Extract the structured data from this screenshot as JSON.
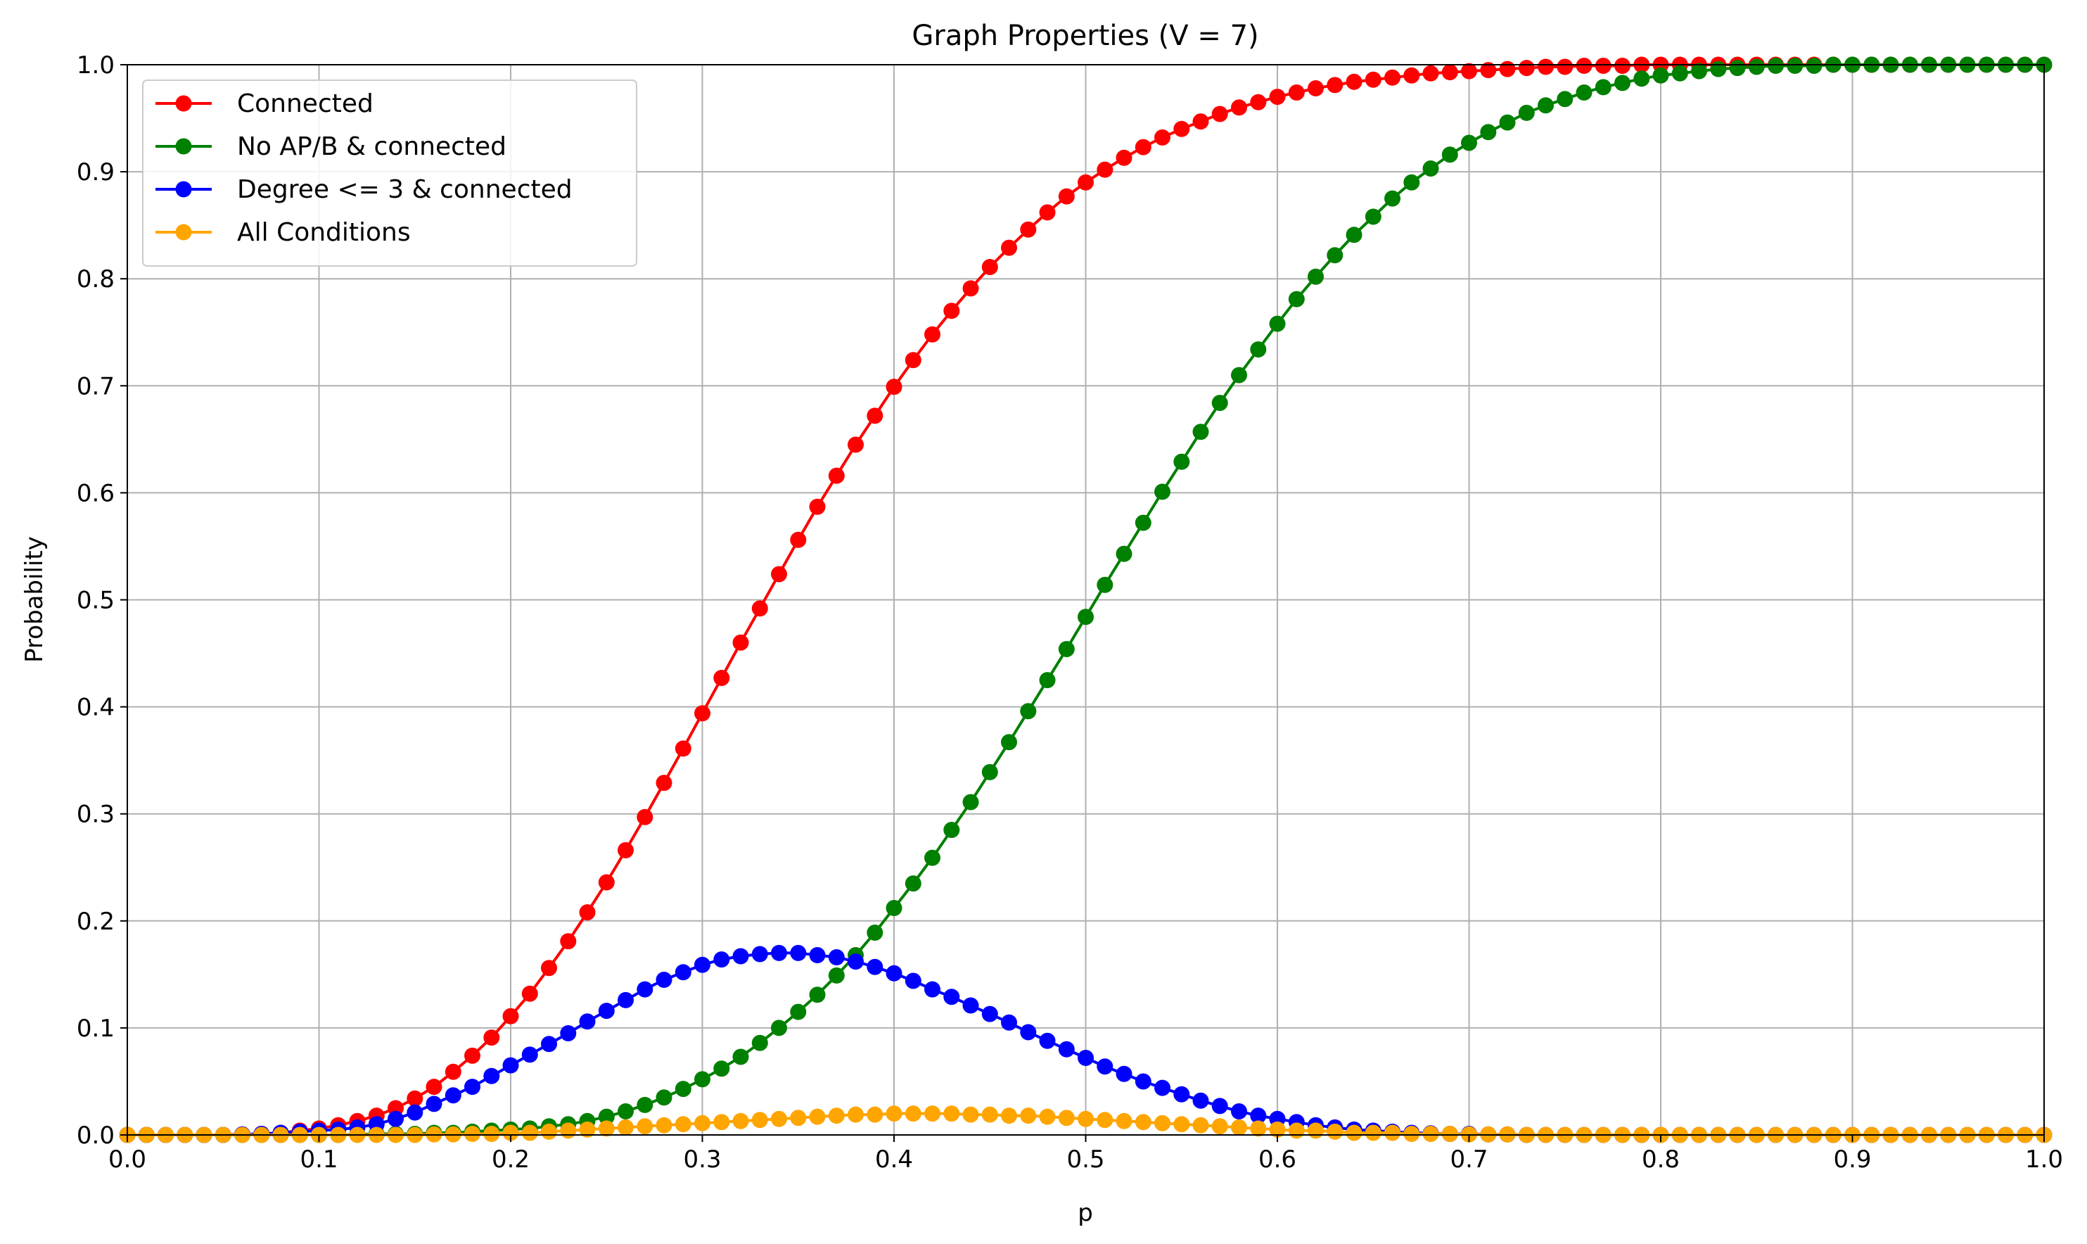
{
  "chart_data": {
    "type": "line",
    "title": "Graph Properties (V = 7)",
    "xlabel": "p",
    "ylabel": "Probability",
    "xlim": [
      0.0,
      1.0
    ],
    "ylim": [
      0.0,
      1.0
    ],
    "xticks": [
      "0.0",
      "0.1",
      "0.2",
      "0.3",
      "0.4",
      "0.5",
      "0.6",
      "0.7",
      "0.8",
      "0.9",
      "1.0"
    ],
    "yticks": [
      "0.0",
      "0.1",
      "0.2",
      "0.3",
      "0.4",
      "0.5",
      "0.6",
      "0.7",
      "0.8",
      "0.9",
      "1.0"
    ],
    "grid": true,
    "legend_position": "top-left",
    "marker": "circle",
    "series": [
      {
        "name": "Connected",
        "color": "#ff0000",
        "x": [
          0.0,
          0.01,
          0.02,
          0.03,
          0.04,
          0.05,
          0.06,
          0.07,
          0.08,
          0.09,
          0.1,
          0.11,
          0.12,
          0.13,
          0.14,
          0.15,
          0.16,
          0.17,
          0.18,
          0.19,
          0.2,
          0.21,
          0.22,
          0.23,
          0.24,
          0.25,
          0.26,
          0.27,
          0.28,
          0.29,
          0.3,
          0.31,
          0.32,
          0.33,
          0.34,
          0.35,
          0.36,
          0.37,
          0.38,
          0.39,
          0.4,
          0.41,
          0.42,
          0.43,
          0.44,
          0.45,
          0.46,
          0.47,
          0.48,
          0.49,
          0.5,
          0.51,
          0.52,
          0.53,
          0.54,
          0.55,
          0.56,
          0.57,
          0.58,
          0.59,
          0.6,
          0.61,
          0.62,
          0.63,
          0.64,
          0.65,
          0.66,
          0.67,
          0.68,
          0.69,
          0.7,
          0.71,
          0.72,
          0.73,
          0.74,
          0.75,
          0.76,
          0.77,
          0.78,
          0.79,
          0.8,
          0.81,
          0.82,
          0.83,
          0.84,
          0.85,
          0.86,
          0.87,
          0.88,
          0.89,
          0.9,
          0.91,
          0.92,
          0.93,
          0.94,
          0.95,
          0.96,
          0.97,
          0.98,
          0.99,
          1.0
        ],
        "y": [
          0.0,
          0.0,
          0.0,
          0.0,
          0.0,
          0.0,
          0.0005,
          0.001,
          0.002,
          0.004,
          0.006,
          0.009,
          0.013,
          0.018,
          0.025,
          0.034,
          0.045,
          0.059,
          0.074,
          0.091,
          0.111,
          0.132,
          0.156,
          0.181,
          0.208,
          0.236,
          0.266,
          0.297,
          0.329,
          0.361,
          0.394,
          0.427,
          0.46,
          0.492,
          0.524,
          0.556,
          0.587,
          0.616,
          0.645,
          0.672,
          0.699,
          0.724,
          0.748,
          0.77,
          0.791,
          0.811,
          0.829,
          0.846,
          0.862,
          0.877,
          0.89,
          0.902,
          0.913,
          0.923,
          0.932,
          0.94,
          0.947,
          0.954,
          0.96,
          0.965,
          0.97,
          0.974,
          0.978,
          0.981,
          0.984,
          0.986,
          0.988,
          0.99,
          0.992,
          0.993,
          0.994,
          0.995,
          0.996,
          0.997,
          0.998,
          0.998,
          0.999,
          0.999,
          0.999,
          1.0,
          1.0,
          1.0,
          1.0,
          1.0,
          1.0,
          1.0,
          1.0,
          1.0,
          1.0,
          1.0,
          1.0,
          1.0,
          1.0,
          1.0,
          1.0,
          1.0,
          1.0,
          1.0,
          1.0,
          1.0,
          1.0
        ]
      },
      {
        "name": "No AP/B & connected",
        "color": "#008000",
        "x": [
          0.0,
          0.01,
          0.02,
          0.03,
          0.04,
          0.05,
          0.06,
          0.07,
          0.08,
          0.09,
          0.1,
          0.11,
          0.12,
          0.13,
          0.14,
          0.15,
          0.16,
          0.17,
          0.18,
          0.19,
          0.2,
          0.21,
          0.22,
          0.23,
          0.24,
          0.25,
          0.26,
          0.27,
          0.28,
          0.29,
          0.3,
          0.31,
          0.32,
          0.33,
          0.34,
          0.35,
          0.36,
          0.37,
          0.38,
          0.39,
          0.4,
          0.41,
          0.42,
          0.43,
          0.44,
          0.45,
          0.46,
          0.47,
          0.48,
          0.49,
          0.5,
          0.51,
          0.52,
          0.53,
          0.54,
          0.55,
          0.56,
          0.57,
          0.58,
          0.59,
          0.6,
          0.61,
          0.62,
          0.63,
          0.64,
          0.65,
          0.66,
          0.67,
          0.68,
          0.69,
          0.7,
          0.71,
          0.72,
          0.73,
          0.74,
          0.75,
          0.76,
          0.77,
          0.78,
          0.79,
          0.8,
          0.81,
          0.82,
          0.83,
          0.84,
          0.85,
          0.86,
          0.87,
          0.88,
          0.89,
          0.9,
          0.91,
          0.92,
          0.93,
          0.94,
          0.95,
          0.96,
          0.97,
          0.98,
          0.99,
          1.0
        ],
        "y": [
          0.0,
          0.0,
          0.0,
          0.0,
          0.0,
          0.0,
          0.0,
          0.0,
          0.0,
          0.0,
          0.0,
          0.0,
          0.0005,
          0.001,
          0.001,
          0.001,
          0.002,
          0.002,
          0.003,
          0.004,
          0.005,
          0.006,
          0.008,
          0.01,
          0.013,
          0.017,
          0.022,
          0.028,
          0.035,
          0.043,
          0.052,
          0.062,
          0.073,
          0.086,
          0.1,
          0.115,
          0.131,
          0.149,
          0.168,
          0.189,
          0.212,
          0.235,
          0.259,
          0.285,
          0.311,
          0.339,
          0.367,
          0.396,
          0.425,
          0.454,
          0.484,
          0.514,
          0.543,
          0.572,
          0.601,
          0.629,
          0.657,
          0.684,
          0.71,
          0.734,
          0.758,
          0.781,
          0.802,
          0.822,
          0.841,
          0.858,
          0.875,
          0.89,
          0.903,
          0.916,
          0.927,
          0.937,
          0.946,
          0.955,
          0.962,
          0.968,
          0.974,
          0.979,
          0.983,
          0.987,
          0.99,
          0.992,
          0.994,
          0.996,
          0.997,
          0.998,
          0.999,
          0.999,
          0.999,
          1.0,
          1.0,
          1.0,
          1.0,
          1.0,
          1.0,
          1.0,
          1.0,
          1.0,
          1.0,
          1.0,
          1.0
        ]
      },
      {
        "name": "Degree <= 3 & connected",
        "color": "#0000ff",
        "x": [
          0.0,
          0.01,
          0.02,
          0.03,
          0.04,
          0.05,
          0.06,
          0.07,
          0.08,
          0.09,
          0.1,
          0.11,
          0.12,
          0.13,
          0.14,
          0.15,
          0.16,
          0.17,
          0.18,
          0.19,
          0.2,
          0.21,
          0.22,
          0.23,
          0.24,
          0.25,
          0.26,
          0.27,
          0.28,
          0.29,
          0.3,
          0.31,
          0.32,
          0.33,
          0.34,
          0.35,
          0.36,
          0.37,
          0.38,
          0.39,
          0.4,
          0.41,
          0.42,
          0.43,
          0.44,
          0.45,
          0.46,
          0.47,
          0.48,
          0.49,
          0.5,
          0.51,
          0.52,
          0.53,
          0.54,
          0.55,
          0.56,
          0.57,
          0.58,
          0.59,
          0.6,
          0.61,
          0.62,
          0.63,
          0.64,
          0.65,
          0.66,
          0.67,
          0.68,
          0.69,
          0.7,
          0.71,
          0.72,
          0.73,
          0.74,
          0.75,
          0.76,
          0.77,
          0.78,
          0.79,
          0.8,
          0.81,
          0.82,
          0.83,
          0.84,
          0.85,
          0.86,
          0.87,
          0.88,
          0.89,
          0.9,
          0.91,
          0.92,
          0.93,
          0.94,
          0.95,
          0.96,
          0.97,
          0.98,
          0.99,
          1.0
        ],
        "y": [
          0.0,
          0.0,
          0.0,
          0.0,
          0.0,
          0.0,
          0.0005,
          0.001,
          0.002,
          0.003,
          0.004,
          0.005,
          0.007,
          0.01,
          0.015,
          0.021,
          0.029,
          0.037,
          0.045,
          0.055,
          0.065,
          0.075,
          0.085,
          0.095,
          0.106,
          0.116,
          0.126,
          0.136,
          0.145,
          0.152,
          0.159,
          0.164,
          0.167,
          0.169,
          0.17,
          0.17,
          0.168,
          0.166,
          0.162,
          0.157,
          0.151,
          0.144,
          0.136,
          0.129,
          0.121,
          0.113,
          0.105,
          0.096,
          0.088,
          0.08,
          0.072,
          0.064,
          0.057,
          0.05,
          0.044,
          0.038,
          0.032,
          0.027,
          0.022,
          0.018,
          0.015,
          0.012,
          0.009,
          0.007,
          0.005,
          0.004,
          0.003,
          0.002,
          0.0015,
          0.001,
          0.001,
          0.0005,
          0.0005,
          0.0,
          0.0,
          0.0,
          0.0,
          0.0,
          0.0,
          0.0,
          0.0,
          0.0,
          0.0,
          0.0,
          0.0,
          0.0,
          0.0,
          0.0,
          0.0,
          0.0,
          0.0,
          0.0,
          0.0,
          0.0,
          0.0,
          0.0,
          0.0,
          0.0,
          0.0,
          0.0,
          0.0
        ]
      },
      {
        "name": "All Conditions",
        "color": "#ffa500",
        "x": [
          0.0,
          0.01,
          0.02,
          0.03,
          0.04,
          0.05,
          0.06,
          0.07,
          0.08,
          0.09,
          0.1,
          0.11,
          0.12,
          0.13,
          0.14,
          0.15,
          0.16,
          0.17,
          0.18,
          0.19,
          0.2,
          0.21,
          0.22,
          0.23,
          0.24,
          0.25,
          0.26,
          0.27,
          0.28,
          0.29,
          0.3,
          0.31,
          0.32,
          0.33,
          0.34,
          0.35,
          0.36,
          0.37,
          0.38,
          0.39,
          0.4,
          0.41,
          0.42,
          0.43,
          0.44,
          0.45,
          0.46,
          0.47,
          0.48,
          0.49,
          0.5,
          0.51,
          0.52,
          0.53,
          0.54,
          0.55,
          0.56,
          0.57,
          0.58,
          0.59,
          0.6,
          0.61,
          0.62,
          0.63,
          0.64,
          0.65,
          0.66,
          0.67,
          0.68,
          0.69,
          0.7,
          0.71,
          0.72,
          0.73,
          0.74,
          0.75,
          0.76,
          0.77,
          0.78,
          0.79,
          0.8,
          0.81,
          0.82,
          0.83,
          0.84,
          0.85,
          0.86,
          0.87,
          0.88,
          0.89,
          0.9,
          0.91,
          0.92,
          0.93,
          0.94,
          0.95,
          0.96,
          0.97,
          0.98,
          0.99,
          1.0
        ],
        "y": [
          0.0,
          0.0,
          0.0,
          0.0,
          0.0,
          0.0,
          0.0,
          0.0,
          0.0,
          0.0,
          0.0,
          0.0,
          0.0,
          0.0,
          0.0,
          0.0,
          0.0005,
          0.0005,
          0.001,
          0.001,
          0.002,
          0.002,
          0.003,
          0.004,
          0.005,
          0.006,
          0.007,
          0.008,
          0.009,
          0.01,
          0.011,
          0.012,
          0.013,
          0.014,
          0.015,
          0.016,
          0.017,
          0.018,
          0.019,
          0.019,
          0.02,
          0.02,
          0.02,
          0.02,
          0.019,
          0.019,
          0.018,
          0.018,
          0.017,
          0.016,
          0.015,
          0.014,
          0.013,
          0.012,
          0.011,
          0.01,
          0.009,
          0.008,
          0.007,
          0.006,
          0.005,
          0.004,
          0.004,
          0.003,
          0.002,
          0.002,
          0.002,
          0.001,
          0.001,
          0.001,
          0.0005,
          0.0005,
          0.0005,
          0.0,
          0.0,
          0.0,
          0.0,
          0.0,
          0.0,
          0.0,
          0.0,
          0.0,
          0.0,
          0.0,
          0.0,
          0.0,
          0.0,
          0.0,
          0.0,
          0.0,
          0.0,
          0.0,
          0.0,
          0.0,
          0.0,
          0.0,
          0.0,
          0.0,
          0.0,
          0.0,
          0.0
        ]
      }
    ]
  }
}
